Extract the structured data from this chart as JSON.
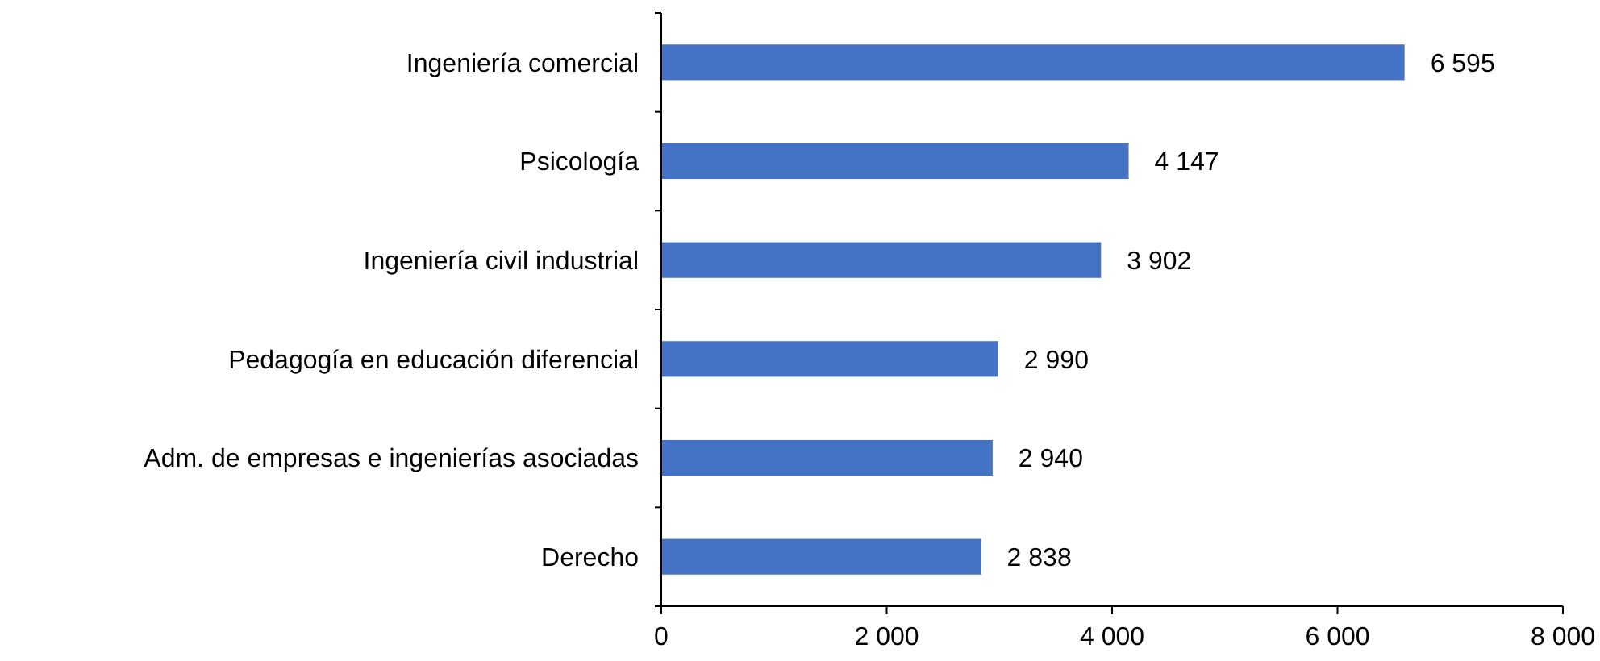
{
  "chart_data": {
    "type": "bar",
    "orientation": "horizontal",
    "categories": [
      "Ingeniería comercial",
      "Psicología",
      "Ingeniería civil industrial",
      "Pedagogía en educación diferencial",
      "Adm. de empresas e ingenierías asociadas",
      "Derecho"
    ],
    "values": [
      6595,
      4147,
      3902,
      2990,
      2940,
      2838
    ],
    "value_labels": [
      "6 595",
      "4 147",
      "3 902",
      "2 990",
      "2 940",
      "2 838"
    ],
    "color": "#4472c4",
    "xlim": [
      0,
      8000
    ],
    "xticks": [
      0,
      {
        "value": 2000,
        "label": "2 000"
      },
      {
        "value": 4000,
        "label": "4 000"
      },
      {
        "value": 6000,
        "label": "6 000"
      },
      {
        "value": 8000,
        "label": "8 000"
      }
    ],
    "grid": false
  }
}
